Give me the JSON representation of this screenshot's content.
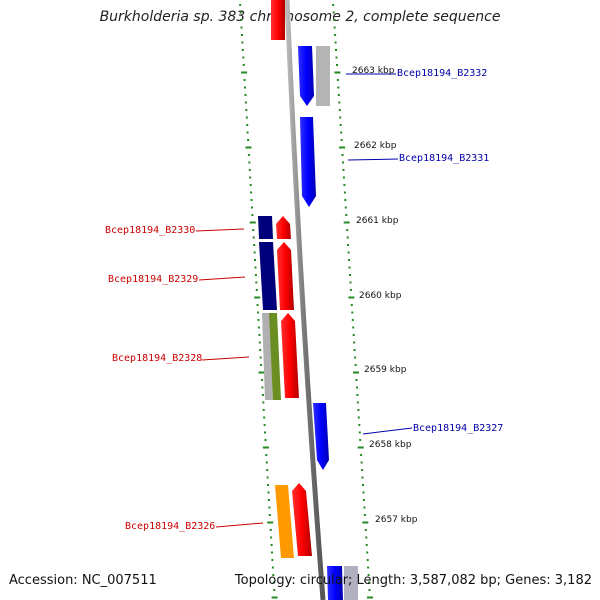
{
  "title": "Burkholderia sp. 383 chromosome 2, complete sequence",
  "footer": {
    "accession": "Accession: NC_007511",
    "topology": "Topology: circular; Length: 3,587,082 bp; Genes: 3,182"
  },
  "colors": {
    "forward_strand": "#ff0000",
    "reverse_strand": "#0000ff",
    "forward_label": "#cc0000",
    "reverse_label": "#0000aa",
    "tick": "#228b22",
    "backbone": "#888888",
    "dark_gene": "#00007a",
    "gray_gene": "#b0b0b0",
    "green_gene": "#6b8e23",
    "orange_gene": "#ff9900"
  },
  "kbp_ticks": [
    "2663 kbp",
    "2662 kbp",
    "2661 kbp",
    "2660 kbp",
    "2659 kbp",
    "2658 kbp",
    "2657 kbp"
  ],
  "gene_labels": {
    "b2332": "Bcep18194_B2332",
    "b2331": "Bcep18194_B2331",
    "b2330": "Bcep18194_B2330",
    "b2329": "Bcep18194_B2329",
    "b2328": "Bcep18194_B2328",
    "b2327": "Bcep18194_B2327",
    "b2326": "Bcep18194_B2326"
  }
}
